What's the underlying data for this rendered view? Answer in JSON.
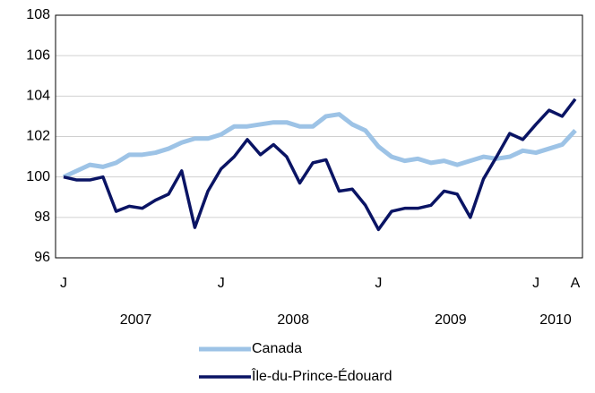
{
  "chart_data": {
    "type": "line",
    "categories": [
      "J",
      null,
      null,
      null,
      null,
      null,
      null,
      null,
      null,
      null,
      null,
      null,
      "J",
      null,
      null,
      null,
      null,
      null,
      null,
      null,
      null,
      null,
      null,
      null,
      "J",
      null,
      null,
      null,
      null,
      null,
      null,
      null,
      null,
      null,
      null,
      null,
      "J",
      null,
      null,
      "A"
    ],
    "year_labels": [
      "2007",
      "2008",
      "2009",
      "2010"
    ],
    "series": [
      {
        "name": "Canada",
        "color": "#9dc3e6",
        "values": [
          100.0,
          100.3,
          100.6,
          100.5,
          100.7,
          101.1,
          101.1,
          101.2,
          101.4,
          101.7,
          101.9,
          101.9,
          102.1,
          102.5,
          102.5,
          102.6,
          102.7,
          102.7,
          102.5,
          102.5,
          103.0,
          103.1,
          102.6,
          102.3,
          101.5,
          101.0,
          100.8,
          100.9,
          100.7,
          100.8,
          100.6,
          100.8,
          101.0,
          100.9,
          101.0,
          101.3,
          101.2,
          101.4,
          101.6,
          102.3
        ]
      },
      {
        "name": "Île-du-Prince-Édouard",
        "color": "#0a1464",
        "values": [
          100.0,
          99.85,
          99.85,
          100.0,
          98.3,
          98.55,
          98.45,
          98.85,
          99.15,
          100.3,
          97.5,
          99.3,
          100.4,
          101.0,
          101.85,
          101.1,
          101.6,
          101.0,
          99.7,
          100.7,
          100.85,
          99.3,
          99.4,
          98.6,
          97.4,
          98.3,
          98.45,
          98.45,
          98.6,
          99.3,
          99.15,
          98.0,
          99.9,
          101.0,
          102.15,
          101.85,
          102.6,
          103.3,
          103.0,
          103.85
        ]
      }
    ],
    "ylim": [
      96,
      108
    ],
    "yticks": [
      96,
      98,
      100,
      102,
      104,
      106,
      108
    ],
    "grid": true
  }
}
